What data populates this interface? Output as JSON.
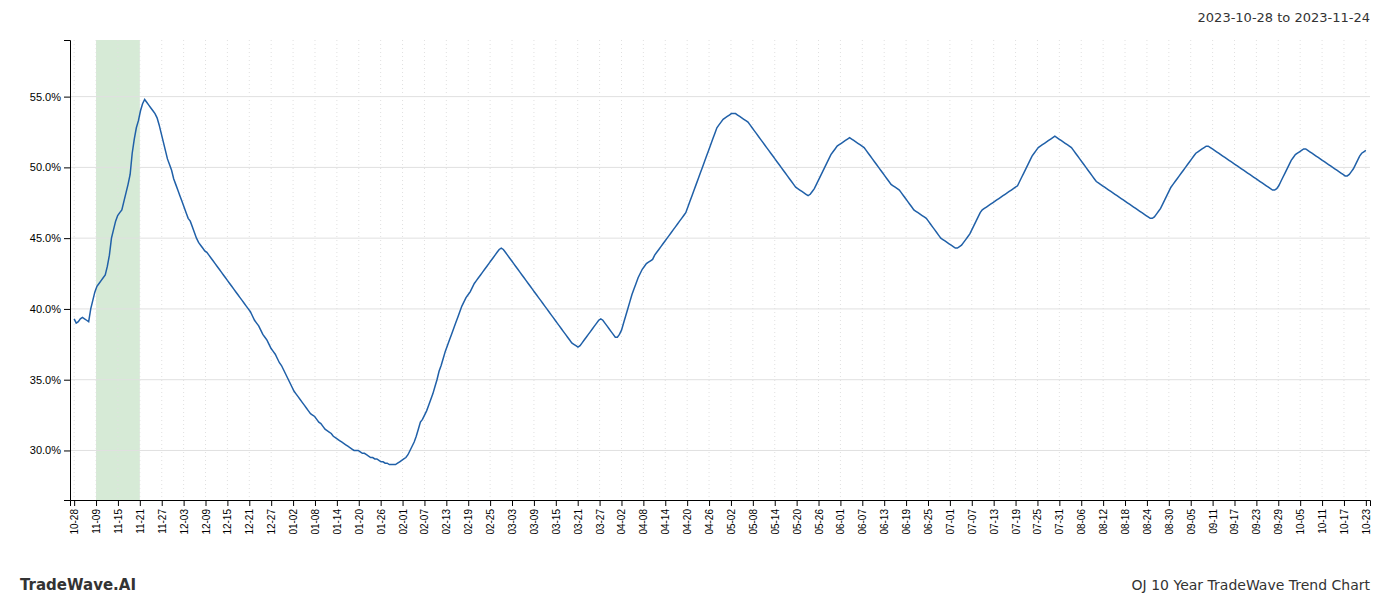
{
  "chart_data": {
    "type": "line",
    "title": "2023-10-28 to 2023-11-24",
    "annotations": [
      "TradeWave.AI",
      "OJ 10 Year TradeWave Trend Chart"
    ],
    "color": "#2060a8",
    "grid": true,
    "highlight": {
      "x": [
        10.559,
        31.678
      ],
      "color": "#d6ead6"
    },
    "xlim": [
      -2,
      625
    ],
    "xticks": [
      {
        "value": 0,
        "label": "10-28"
      },
      {
        "value": 10.559,
        "label": "11-09"
      },
      {
        "value": 21.119,
        "label": "11-15"
      },
      {
        "value": 31.678,
        "label": "11-21"
      },
      {
        "value": 42.237,
        "label": "11-27"
      },
      {
        "value": 52.797,
        "label": "12-03"
      },
      {
        "value": 63.356,
        "label": "12-09"
      },
      {
        "value": 73.915,
        "label": "12-15"
      },
      {
        "value": 84.475,
        "label": "12-21"
      },
      {
        "value": 95.034,
        "label": "12-27"
      },
      {
        "value": 105.593,
        "label": "01-02"
      },
      {
        "value": 116.153,
        "label": "01-08"
      },
      {
        "value": 126.712,
        "label": "01-14"
      },
      {
        "value": 137.271,
        "label": "01-20"
      },
      {
        "value": 147.831,
        "label": "01-26"
      },
      {
        "value": 158.39,
        "label": "02-01"
      },
      {
        "value": 168.949,
        "label": "02-07"
      },
      {
        "value": 179.508,
        "label": "02-13"
      },
      {
        "value": 190.068,
        "label": "02-19"
      },
      {
        "value": 200.627,
        "label": "02-25"
      },
      {
        "value": 211.186,
        "label": "03-03"
      },
      {
        "value": 221.746,
        "label": "03-09"
      },
      {
        "value": 232.305,
        "label": "03-15"
      },
      {
        "value": 242.864,
        "label": "03-21"
      },
      {
        "value": 253.424,
        "label": "03-27"
      },
      {
        "value": 263.983,
        "label": "04-02"
      },
      {
        "value": 274.542,
        "label": "04-08"
      },
      {
        "value": 285.102,
        "label": "04-14"
      },
      {
        "value": 295.661,
        "label": "04-20"
      },
      {
        "value": 306.22,
        "label": "04-26"
      },
      {
        "value": 316.78,
        "label": "05-02"
      },
      {
        "value": 327.339,
        "label": "05-08"
      },
      {
        "value": 337.898,
        "label": "05-14"
      },
      {
        "value": 348.458,
        "label": "05-20"
      },
      {
        "value": 359.017,
        "label": "05-26"
      },
      {
        "value": 369.576,
        "label": "06-01"
      },
      {
        "value": 380.136,
        "label": "06-07"
      },
      {
        "value": 390.695,
        "label": "06-13"
      },
      {
        "value": 401.254,
        "label": "06-19"
      },
      {
        "value": 411.814,
        "label": "06-25"
      },
      {
        "value": 422.373,
        "label": "07-01"
      },
      {
        "value": 432.932,
        "label": "07-07"
      },
      {
        "value": 443.492,
        "label": "07-13"
      },
      {
        "value": 454.051,
        "label": "07-19"
      },
      {
        "value": 464.61,
        "label": "07-25"
      },
      {
        "value": 475.169,
        "label": "07-31"
      },
      {
        "value": 485.729,
        "label": "08-06"
      },
      {
        "value": 496.288,
        "label": "08-12"
      },
      {
        "value": 506.847,
        "label": "08-18"
      },
      {
        "value": 517.407,
        "label": "08-24"
      },
      {
        "value": 527.966,
        "label": "08-30"
      },
      {
        "value": 538.525,
        "label": "09-05"
      },
      {
        "value": 549.085,
        "label": "09-11"
      },
      {
        "value": 559.644,
        "label": "09-17"
      },
      {
        "value": 570.203,
        "label": "09-23"
      },
      {
        "value": 580.763,
        "label": "09-29"
      },
      {
        "value": 591.322,
        "label": "10-05"
      },
      {
        "value": 601.881,
        "label": "10-11"
      },
      {
        "value": 612.441,
        "label": "10-17"
      },
      {
        "value": 623,
        "label": "10-23"
      }
    ],
    "ylim": [
      0.265,
      0.59
    ],
    "yticks": [
      {
        "value": 0.3,
        "label": "30.0%"
      },
      {
        "value": 0.35,
        "label": "35.0%"
      },
      {
        "value": 0.4,
        "label": "40.0%"
      },
      {
        "value": 0.45,
        "label": "45.0%"
      },
      {
        "value": 0.5,
        "label": "50.0%"
      },
      {
        "value": 0.55,
        "label": "55.0%"
      }
    ],
    "values": [
      0.393,
      0.39,
      0.391,
      0.393,
      0.394,
      0.393,
      0.392,
      0.391,
      0.4,
      0.406,
      0.412,
      0.416,
      0.418,
      0.42,
      0.422,
      0.424,
      0.43,
      0.438,
      0.45,
      0.456,
      0.462,
      0.466,
      0.468,
      0.47,
      0.476,
      0.482,
      0.488,
      0.495,
      0.51,
      0.52,
      0.528,
      0.533,
      0.54,
      0.545,
      0.548,
      0.546,
      0.544,
      0.542,
      0.54,
      0.538,
      0.535,
      0.53,
      0.524,
      0.518,
      0.512,
      0.506,
      0.502,
      0.498,
      0.492,
      0.488,
      0.484,
      0.48,
      0.476,
      0.472,
      0.468,
      0.464,
      0.462,
      0.458,
      0.454,
      0.45,
      0.447,
      0.445,
      0.443,
      0.441,
      0.44,
      0.438,
      0.436,
      0.434,
      0.432,
      0.43,
      0.428,
      0.426,
      0.424,
      0.422,
      0.42,
      0.418,
      0.416,
      0.414,
      0.412,
      0.41,
      0.408,
      0.406,
      0.404,
      0.402,
      0.4,
      0.398,
      0.395,
      0.392,
      0.39,
      0.388,
      0.385,
      0.382,
      0.38,
      0.378,
      0.375,
      0.372,
      0.37,
      0.368,
      0.365,
      0.362,
      0.36,
      0.357,
      0.354,
      0.351,
      0.348,
      0.345,
      0.342,
      0.34,
      0.338,
      0.336,
      0.334,
      0.332,
      0.33,
      0.328,
      0.326,
      0.325,
      0.324,
      0.322,
      0.32,
      0.319,
      0.317,
      0.315,
      0.314,
      0.313,
      0.312,
      0.31,
      0.309,
      0.308,
      0.307,
      0.306,
      0.305,
      0.304,
      0.303,
      0.302,
      0.301,
      0.3,
      0.3,
      0.3,
      0.299,
      0.298,
      0.298,
      0.297,
      0.296,
      0.295,
      0.295,
      0.294,
      0.294,
      0.293,
      0.292,
      0.292,
      0.291,
      0.291,
      0.29,
      0.29,
      0.29,
      0.29,
      0.291,
      0.292,
      0.293,
      0.294,
      0.295,
      0.297,
      0.3,
      0.303,
      0.306,
      0.31,
      0.315,
      0.32,
      0.322,
      0.325,
      0.328,
      0.332,
      0.336,
      0.34,
      0.345,
      0.35,
      0.356,
      0.36,
      0.365,
      0.37,
      0.374,
      0.378,
      0.382,
      0.386,
      0.39,
      0.394,
      0.398,
      0.402,
      0.405,
      0.408,
      0.41,
      0.412,
      0.415,
      0.418,
      0.42,
      0.422,
      0.424,
      0.426,
      0.428,
      0.43,
      0.432,
      0.434,
      0.436,
      0.438,
      0.44,
      0.442,
      0.443,
      0.442,
      0.44,
      0.438,
      0.436,
      0.434,
      0.432,
      0.43,
      0.428,
      0.426,
      0.424,
      0.422,
      0.42,
      0.418,
      0.416,
      0.414,
      0.412,
      0.41,
      0.408,
      0.406,
      0.404,
      0.402,
      0.4,
      0.398,
      0.396,
      0.394,
      0.392,
      0.39,
      0.388,
      0.386,
      0.384,
      0.382,
      0.38,
      0.378,
      0.376,
      0.375,
      0.374,
      0.373,
      0.374,
      0.376,
      0.378,
      0.38,
      0.382,
      0.384,
      0.386,
      0.388,
      0.39,
      0.392,
      0.393,
      0.392,
      0.39,
      0.388,
      0.386,
      0.384,
      0.382,
      0.38,
      0.38,
      0.382,
      0.385,
      0.39,
      0.395,
      0.4,
      0.405,
      0.41,
      0.414,
      0.418,
      0.422,
      0.425,
      0.428,
      0.43,
      0.432,
      0.433,
      0.434,
      0.435,
      0.438,
      0.44,
      0.442,
      0.444,
      0.446,
      0.448,
      0.45,
      0.452,
      0.454,
      0.456,
      0.458,
      0.46,
      0.462,
      0.464,
      0.466,
      0.468,
      0.472,
      0.476,
      0.48,
      0.484,
      0.488,
      0.492,
      0.496,
      0.5,
      0.504,
      0.508,
      0.512,
      0.516,
      0.52,
      0.524,
      0.528,
      0.53,
      0.532,
      0.534,
      0.535,
      0.536,
      0.537,
      0.538,
      0.538,
      0.538,
      0.537,
      0.536,
      0.535,
      0.534,
      0.533,
      0.532,
      0.53,
      0.528,
      0.526,
      0.524,
      0.522,
      0.52,
      0.518,
      0.516,
      0.514,
      0.512,
      0.51,
      0.508,
      0.506,
      0.504,
      0.502,
      0.5,
      0.498,
      0.496,
      0.494,
      0.492,
      0.49,
      0.488,
      0.486,
      0.485,
      0.484,
      0.483,
      0.482,
      0.481,
      0.48,
      0.481,
      0.483,
      0.485,
      0.488,
      0.491,
      0.494,
      0.497,
      0.5,
      0.503,
      0.506,
      0.509,
      0.511,
      0.513,
      0.515,
      0.516,
      0.517,
      0.518,
      0.519,
      0.52,
      0.521,
      0.52,
      0.519,
      0.518,
      0.517,
      0.516,
      0.515,
      0.514,
      0.512,
      0.51,
      0.508,
      0.506,
      0.504,
      0.502,
      0.5,
      0.498,
      0.496,
      0.494,
      0.492,
      0.49,
      0.488,
      0.487,
      0.486,
      0.485,
      0.484,
      0.482,
      0.48,
      0.478,
      0.476,
      0.474,
      0.472,
      0.47,
      0.469,
      0.468,
      0.467,
      0.466,
      0.465,
      0.464,
      0.462,
      0.46,
      0.458,
      0.456,
      0.454,
      0.452,
      0.45,
      0.449,
      0.448,
      0.447,
      0.446,
      0.445,
      0.444,
      0.443,
      0.443,
      0.444,
      0.445,
      0.447,
      0.449,
      0.451,
      0.453,
      0.456,
      0.459,
      0.462,
      0.465,
      0.468,
      0.47,
      0.471,
      0.472,
      0.473,
      0.474,
      0.475,
      0.476,
      0.477,
      0.478,
      0.479,
      0.48,
      0.481,
      0.482,
      0.483,
      0.484,
      0.485,
      0.486,
      0.487,
      0.49,
      0.493,
      0.496,
      0.499,
      0.502,
      0.505,
      0.508,
      0.51,
      0.512,
      0.514,
      0.515,
      0.516,
      0.517,
      0.518,
      0.519,
      0.52,
      0.521,
      0.522,
      0.521,
      0.52,
      0.519,
      0.518,
      0.517,
      0.516,
      0.515,
      0.514,
      0.512,
      0.51,
      0.508,
      0.506,
      0.504,
      0.502,
      0.5,
      0.498,
      0.496,
      0.494,
      0.492,
      0.49,
      0.489,
      0.488,
      0.487,
      0.486,
      0.485,
      0.484,
      0.483,
      0.482,
      0.481,
      0.48,
      0.479,
      0.478,
      0.477,
      0.476,
      0.475,
      0.474,
      0.473,
      0.472,
      0.471,
      0.47,
      0.469,
      0.468,
      0.467,
      0.466,
      0.465,
      0.464,
      0.464,
      0.465,
      0.467,
      0.469,
      0.471,
      0.474,
      0.477,
      0.48,
      0.483,
      0.486,
      0.488,
      0.49,
      0.492,
      0.494,
      0.496,
      0.498,
      0.5,
      0.502,
      0.504,
      0.506,
      0.508,
      0.51,
      0.511,
      0.512,
      0.513,
      0.514,
      0.515,
      0.515,
      0.514,
      0.513,
      0.512,
      0.511,
      0.51,
      0.509,
      0.508,
      0.507,
      0.506,
      0.505,
      0.504,
      0.503,
      0.502,
      0.501,
      0.5,
      0.499,
      0.498,
      0.497,
      0.496,
      0.495,
      0.494,
      0.493,
      0.492,
      0.491,
      0.49,
      0.489,
      0.488,
      0.487,
      0.486,
      0.485,
      0.484,
      0.484,
      0.485,
      0.487,
      0.49,
      0.493,
      0.496,
      0.499,
      0.502,
      0.505,
      0.507,
      0.509,
      0.51,
      0.511,
      0.512,
      0.513,
      0.513,
      0.512,
      0.511,
      0.51,
      0.509,
      0.508,
      0.507,
      0.506,
      0.505,
      0.504,
      0.503,
      0.502,
      0.501,
      0.5,
      0.499,
      0.498,
      0.497,
      0.496,
      0.495,
      0.494,
      0.494,
      0.495,
      0.497,
      0.499,
      0.502,
      0.505,
      0.508,
      0.51,
      0.511,
      0.512
    ]
  }
}
